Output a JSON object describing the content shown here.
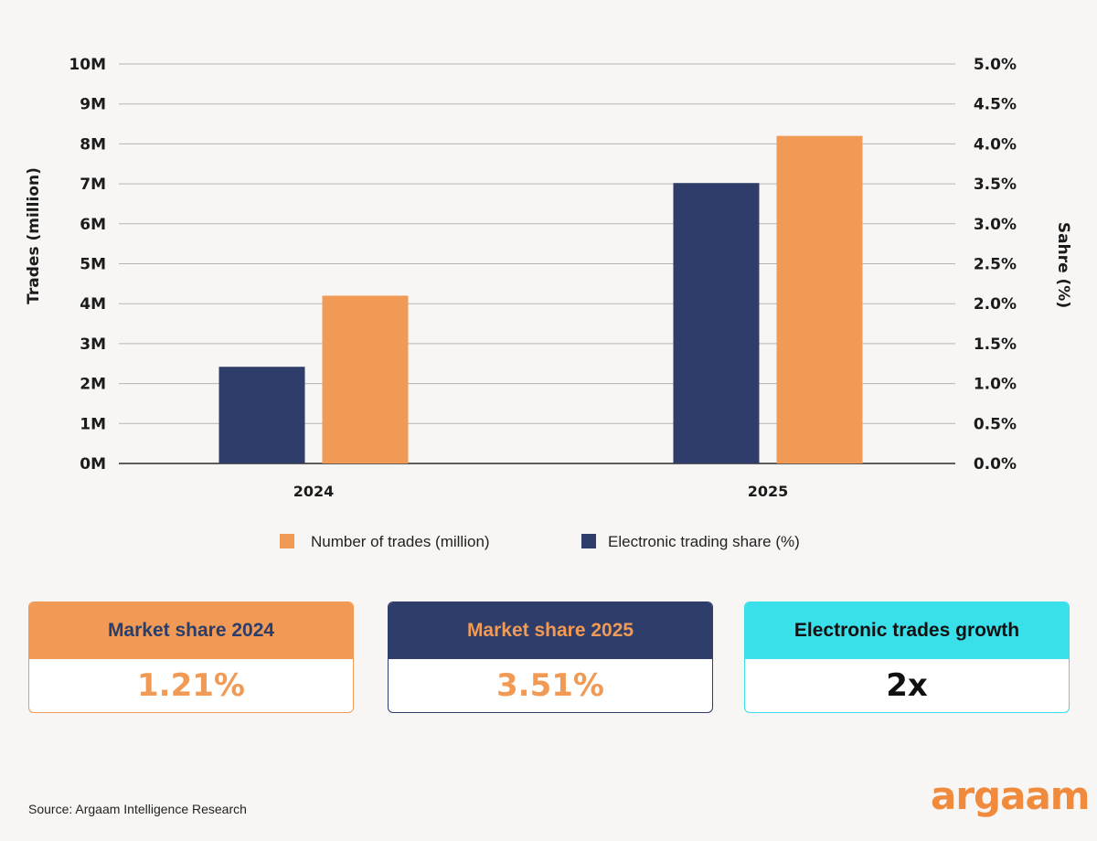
{
  "chart_data": {
    "type": "bar",
    "categories": [
      "2024",
      "2025"
    ],
    "series": [
      {
        "name": "Electronic trading share (%)",
        "axis": "right",
        "color": "#2e3d6a",
        "values": [
          1.21,
          3.51
        ]
      },
      {
        "name": "Number of trades (million)",
        "axis": "left",
        "color": "#f09a55",
        "values": [
          4.2,
          8.2
        ]
      }
    ],
    "ylabel": "Trades (million)",
    "y2label": "Sahre (%)",
    "ylim": [
      0,
      10
    ],
    "y2lim": [
      0,
      5
    ],
    "yticks": [
      "0M",
      "1M",
      "2M",
      "3M",
      "4M",
      "5M",
      "6M",
      "7M",
      "8M",
      "9M",
      "10M"
    ],
    "y2ticks": [
      "0.0%",
      "0.5%",
      "1.0%",
      "1.5%",
      "2.0%",
      "2.5%",
      "3.0%",
      "3.5%",
      "4.0%",
      "4.5%",
      "5.0%"
    ],
    "legend": [
      {
        "label": "Number of trades (million)",
        "color": "#f09a55"
      },
      {
        "label": "Electronic trading share (%)",
        "color": "#2e3d6a"
      }
    ],
    "legend_position": "bottom",
    "grid": true
  },
  "cards": [
    {
      "title": "Market share 2024",
      "value": "1.21%"
    },
    {
      "title": "Market share 2025",
      "value": "3.51%"
    },
    {
      "title": "Electronic trades growth",
      "value": "2x"
    }
  ],
  "source": "Source: Argaam Intelligence Research",
  "logo": "argaam"
}
